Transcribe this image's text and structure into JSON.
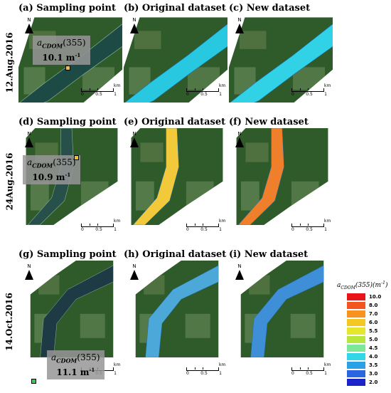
{
  "rows": [
    {
      "date": "12.Aug.2016",
      "panels": [
        {
          "title": "(a) Sampling point",
          "kind": "sampling",
          "water": "#1d4a45"
        },
        {
          "title": "(b) Original dataset",
          "kind": "result",
          "water": "#28c8e0"
        },
        {
          "title": "(c) New dataset",
          "kind": "result",
          "water": "#32d2e6"
        }
      ],
      "annotation": {
        "label": "a",
        "sub": "CDOM",
        "paren": "(355)",
        "value": "10.1 m",
        "sup": "-1"
      },
      "scale_ticks": [
        "0",
        "0.5",
        "1"
      ],
      "scale_unit": "km"
    },
    {
      "date": "24Aug.2016",
      "panels": [
        {
          "title": "(d) Sampling point",
          "kind": "sampling",
          "water": "#27504a"
        },
        {
          "title": "(e) Original dataset",
          "kind": "result",
          "water": "#f2c93a"
        },
        {
          "title": "(f) New dataset",
          "kind": "result",
          "water": "#ef7f2a"
        }
      ],
      "annotation": {
        "label": "a",
        "sub": "CDOM",
        "paren": "(355)",
        "value": "10.9 m",
        "sup": "-1"
      },
      "scale_ticks": [
        "0",
        "0.5",
        "1"
      ],
      "scale_unit": "km"
    },
    {
      "date": "14.Oct.2016",
      "panels": [
        {
          "title": "(g) Sampling point",
          "kind": "sampling",
          "water": "#1e3b45"
        },
        {
          "title": "(h) Original dataset",
          "kind": "result",
          "water": "#4ba8d8"
        },
        {
          "title": "(i) New dataset",
          "kind": "result",
          "water": "#3f8fd8"
        }
      ],
      "annotation": {
        "label": "a",
        "sub": "CDOM",
        "paren": "(355)",
        "value": "11.1 m",
        "sup": "-1"
      },
      "scale_ticks": [
        "0",
        "0.5",
        "1"
      ],
      "scale_unit": "km"
    }
  ],
  "north_label": "N",
  "legend": {
    "title_main": "a",
    "title_sub": "CDOM",
    "title_rest": "(355)(m",
    "title_sup": "-1",
    "title_end": ")",
    "entries": [
      {
        "label": "10.0",
        "color": "#e8141a"
      },
      {
        "label": "8.0",
        "color": "#f2561e"
      },
      {
        "label": "7.0",
        "color": "#f7931e"
      },
      {
        "label": "6.0",
        "color": "#f5c723"
      },
      {
        "label": "5.5",
        "color": "#e6e62a"
      },
      {
        "label": "5.0",
        "color": "#b8e63a"
      },
      {
        "label": "4.5",
        "color": "#7de89a"
      },
      {
        "label": "4.0",
        "color": "#33d6e6"
      },
      {
        "label": "3.5",
        "color": "#2aa0e6"
      },
      {
        "label": "3.0",
        "color": "#2a66e0"
      },
      {
        "label": "2.0",
        "color": "#1a24c8"
      }
    ]
  }
}
